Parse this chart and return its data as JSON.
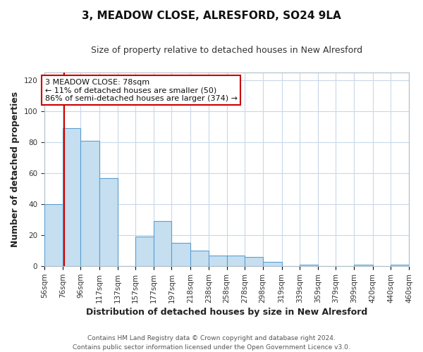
{
  "title": "3, MEADOW CLOSE, ALRESFORD, SO24 9LA",
  "subtitle": "Size of property relative to detached houses in New Alresford",
  "xlabel": "Distribution of detached houses by size in New Alresford",
  "ylabel": "Number of detached properties",
  "bar_edges": [
    56,
    76,
    96,
    117,
    137,
    157,
    177,
    197,
    218,
    238,
    258,
    278,
    298,
    319,
    339,
    359,
    379,
    399,
    420,
    440,
    460
  ],
  "bar_heights": [
    40,
    89,
    81,
    57,
    0,
    19,
    29,
    15,
    10,
    7,
    7,
    6,
    3,
    0,
    1,
    0,
    0,
    1,
    0,
    1
  ],
  "bar_color": "#c5dff0",
  "bar_edge_color": "#5a9fd4",
  "property_line_x": 78,
  "property_line_color": "#cc0000",
  "ylim": [
    0,
    125
  ],
  "yticks": [
    0,
    20,
    40,
    60,
    80,
    100,
    120
  ],
  "annotation_title": "3 MEADOW CLOSE: 78sqm",
  "annotation_line1": "← 11% of detached houses are smaller (50)",
  "annotation_line2": "86% of semi-detached houses are larger (374) →",
  "annotation_box_color": "#cc0000",
  "footer_line1": "Contains HM Land Registry data © Crown copyright and database right 2024.",
  "footer_line2": "Contains public sector information licensed under the Open Government Licence v3.0.",
  "tick_labels": [
    "56sqm",
    "76sqm",
    "96sqm",
    "117sqm",
    "137sqm",
    "157sqm",
    "177sqm",
    "197sqm",
    "218sqm",
    "238sqm",
    "258sqm",
    "278sqm",
    "298sqm",
    "319sqm",
    "339sqm",
    "359sqm",
    "379sqm",
    "399sqm",
    "420sqm",
    "440sqm",
    "460sqm"
  ],
  "background_color": "#ffffff",
  "grid_color": "#c8d8e8",
  "title_fontsize": 11,
  "subtitle_fontsize": 9,
  "axis_label_fontsize": 9,
  "tick_fontsize": 7.5,
  "footer_fontsize": 6.5
}
